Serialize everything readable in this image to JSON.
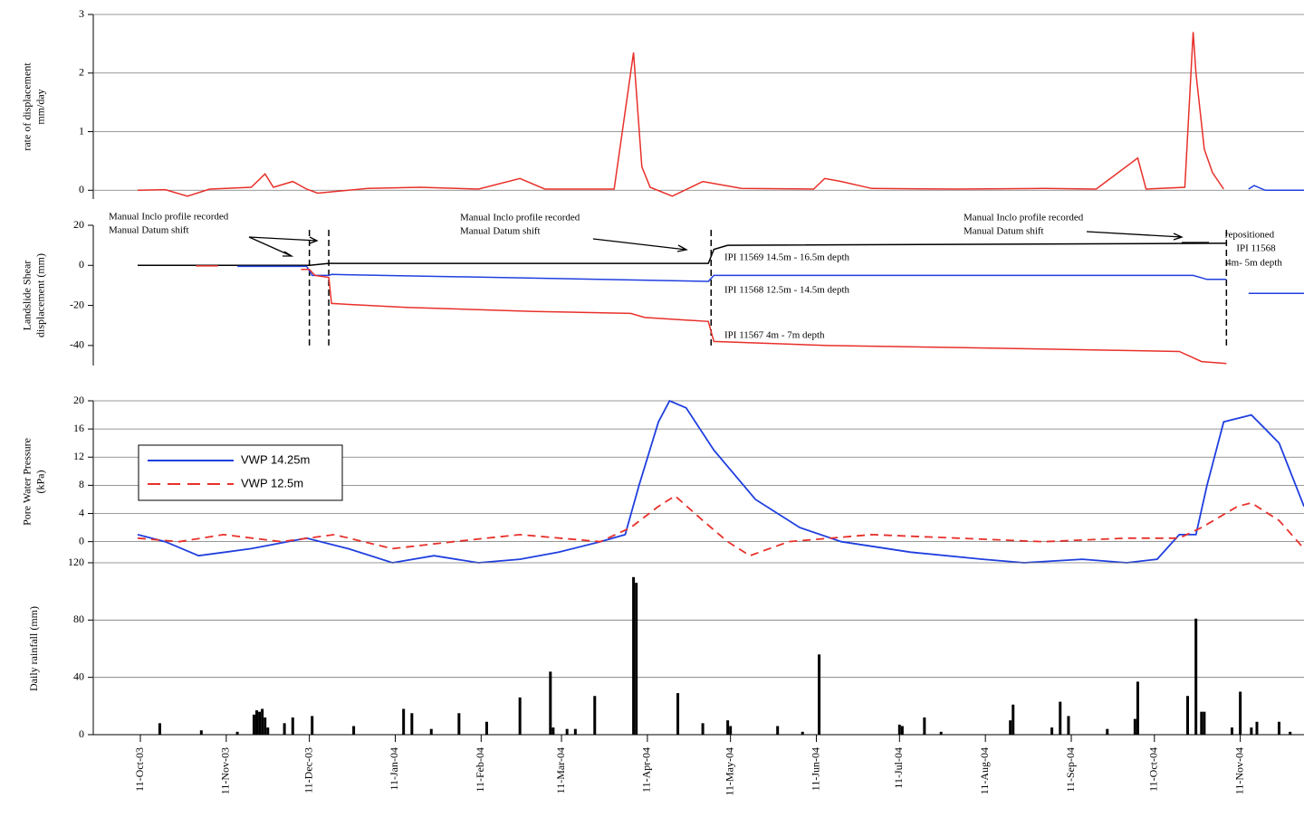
{
  "chart_data": [
    {
      "type": "line",
      "ylabel": [
        "rate of displacement",
        "mm/day"
      ],
      "xlim": [
        "2003-09-24",
        "2004-12-04"
      ],
      "ylim": [
        -0.15,
        3
      ],
      "yticks": [
        0,
        1,
        2,
        3
      ],
      "grid": true,
      "series": [
        {
          "color": "#e8302a",
          "x": [
            "2003-10-10",
            "2003-10-20",
            "2003-10-28",
            "2003-11-05",
            "2003-11-20",
            "2003-11-25",
            "2003-11-28",
            "2003-12-05",
            "2003-12-10",
            "2003-12-14",
            "2004-01-01",
            "2004-01-20",
            "2004-02-10",
            "2004-02-25",
            "2004-03-05",
            "2004-03-30",
            "2004-04-06",
            "2004-04-09",
            "2004-04-12",
            "2004-04-20",
            "2004-05-01",
            "2004-05-15",
            "2004-06-10",
            "2004-06-14",
            "2004-06-20",
            "2004-07-01",
            "2004-08-01",
            "2004-09-01",
            "2004-09-20",
            "2004-10-05",
            "2004-10-08",
            "2004-10-22",
            "2004-10-25",
            "2004-10-26",
            "2004-10-29",
            "2004-11-01",
            "2004-11-05"
          ],
          "values": [
            0,
            0.01,
            -0.1,
            0.02,
            0.05,
            0.28,
            0.05,
            0.15,
            0.02,
            -0.05,
            0.03,
            0.05,
            0.02,
            0.2,
            0.02,
            0.02,
            2.35,
            0.4,
            0.05,
            -0.1,
            0.15,
            0.03,
            0.02,
            0.2,
            0.15,
            0.03,
            0.02,
            0.03,
            0.02,
            0.55,
            0.02,
            0.05,
            2.7,
            2.0,
            0.7,
            0.3,
            0.02
          ]
        },
        {
          "color": "#1f3fdf",
          "x": [
            "2004-11-14",
            "2004-11-16",
            "2004-11-20",
            "2004-12-04"
          ],
          "values": [
            0.02,
            0.08,
            0,
            0
          ]
        }
      ]
    },
    {
      "type": "line",
      "ylabel": [
        "Landslide Shear",
        "displacement (mm)"
      ],
      "xlim": [
        "2003-09-24",
        "2004-12-04"
      ],
      "ylim": [
        -50,
        20
      ],
      "yticks": [
        20,
        0,
        -20,
        -40
      ],
      "grid": false,
      "vlines": [
        "2003-12-11",
        "2003-12-18",
        "2004-05-04",
        "2004-11-06"
      ],
      "annotations": [
        "Manual Inclo profile recorded",
        "Manual Datum shift",
        "Manual Inclo profile recorded",
        "Manual Datum shift",
        "Manual Inclo profile recorded",
        "Manual Datum shift",
        "repositioned",
        "IPI 11568",
        "4m- 5m depth"
      ],
      "series": [
        {
          "name": "IPI 11569 14.5m - 16.5m depth",
          "color": "#000000",
          "x": [
            "2003-10-10",
            "2003-12-11",
            "2003-12-18",
            "2004-05-03",
            "2004-05-05",
            "2004-05-10",
            "2004-11-02",
            "2004-11-06"
          ],
          "values": [
            0,
            0,
            1,
            1,
            8,
            10,
            11,
            11
          ]
        },
        {
          "name": "IPI 11568 12.5m - 14.5m depth",
          "color": "#1f3fdf",
          "x": [
            "2003-11-15",
            "2003-12-10",
            "2003-12-12",
            "2003-12-18",
            "2003-12-19",
            "2004-05-03",
            "2004-05-05",
            "2004-10-25",
            "2004-10-30",
            "2004-11-06",
            "2004-11-10",
            "2004-11-14",
            "2004-12-04"
          ],
          "values": [
            -0.5,
            -0.5,
            -5,
            -5,
            -4.5,
            -8,
            -5,
            -5,
            -7,
            -7,
            null,
            -14,
            -14
          ]
        },
        {
          "name": "IPI 11567 4m - 7m depth",
          "color": "#e8302a",
          "x": [
            "2003-10-31",
            "2003-11-08",
            "2003-11-20",
            "2003-12-08",
            "2003-12-11",
            "2003-12-13",
            "2003-12-18",
            "2003-12-19",
            "2004-01-15",
            "2004-03-01",
            "2004-04-05",
            "2004-04-10",
            "2004-05-03",
            "2004-05-05",
            "2004-06-15",
            "2004-08-01",
            "2004-10-20",
            "2004-10-28",
            "2004-11-06"
          ],
          "values": [
            -0.3,
            -0.3,
            null,
            -2,
            -2,
            -5,
            -6,
            -19,
            -21,
            -23,
            -24,
            -26,
            -28,
            -38,
            -40,
            -41,
            -43,
            -48,
            -49
          ]
        }
      ]
    },
    {
      "type": "line",
      "ylabel": [
        "Pore Water Pressure",
        "(kPa)"
      ],
      "xlim": [
        "2003-09-24",
        "2004-12-04"
      ],
      "ylim": [
        -3,
        20
      ],
      "yticks": [
        0,
        4,
        8,
        12,
        16,
        20
      ],
      "grid": true,
      "series": [
        {
          "name": "VWP 14.25m",
          "color": "#1f3fdf",
          "dash": false,
          "x": [
            "2003-10-10",
            "2003-10-20",
            "2003-11-01",
            "2003-11-20",
            "2003-12-10",
            "2003-12-25",
            "2004-01-10",
            "2004-01-25",
            "2004-02-10",
            "2004-02-25",
            "2004-03-10",
            "2004-03-25",
            "2004-04-03",
            "2004-04-08",
            "2004-04-15",
            "2004-04-19",
            "2004-04-25",
            "2004-05-05",
            "2004-05-20",
            "2004-06-05",
            "2004-06-20",
            "2004-07-15",
            "2004-08-10",
            "2004-08-25",
            "2004-09-15",
            "2004-10-01",
            "2004-10-12",
            "2004-10-20",
            "2004-10-26",
            "2004-10-30",
            "2004-11-05",
            "2004-11-15",
            "2004-11-25",
            "2004-12-04"
          ],
          "values": [
            1,
            0,
            -2,
            -1,
            0.5,
            -1,
            -3,
            -2,
            -3,
            -2.5,
            -1.5,
            0,
            1,
            8,
            17,
            20,
            19,
            13,
            6,
            2,
            0,
            -1.5,
            -2.5,
            -3,
            -2.5,
            -3,
            -2.5,
            1,
            1,
            8,
            17,
            18,
            14,
            5
          ]
        },
        {
          "name": "VWP 12.5m",
          "color": "#e8302a",
          "dash": true,
          "x": [
            "2003-10-10",
            "2003-10-25",
            "2003-11-10",
            "2003-12-01",
            "2003-12-20",
            "2004-01-10",
            "2004-02-01",
            "2004-02-25",
            "2004-03-25",
            "2004-04-05",
            "2004-04-15",
            "2004-04-21",
            "2004-05-01",
            "2004-05-10",
            "2004-05-18",
            "2004-06-01",
            "2004-07-01",
            "2004-08-01",
            "2004-09-01",
            "2004-10-01",
            "2004-10-20",
            "2004-10-28",
            "2004-11-10",
            "2004-11-15",
            "2004-11-25",
            "2004-12-04"
          ],
          "values": [
            0.5,
            0,
            1,
            0,
            1,
            -1,
            0,
            1,
            0,
            2,
            5,
            6.5,
            3,
            0,
            -2,
            0,
            1,
            0.5,
            0,
            0.5,
            0.5,
            2,
            5,
            5.5,
            3,
            -1
          ]
        }
      ]
    },
    {
      "type": "bar",
      "ylabel": [
        "Daily rainfall (mm)"
      ],
      "xlim": [
        "2003-09-24",
        "2004-12-04"
      ],
      "ylim": [
        0,
        120
      ],
      "yticks": [
        0,
        40,
        80,
        120
      ],
      "grid": true,
      "color": "#000000",
      "x": [
        "2003-10-18",
        "2003-11-02",
        "2003-11-15",
        "2003-11-21",
        "2003-11-22",
        "2003-11-23",
        "2003-11-24",
        "2003-11-25",
        "2003-11-26",
        "2003-12-02",
        "2003-12-05",
        "2003-12-12",
        "2003-12-27",
        "2004-01-14",
        "2004-01-17",
        "2004-01-24",
        "2004-02-03",
        "2004-02-13",
        "2004-02-25",
        "2004-03-07",
        "2004-03-08",
        "2004-03-13",
        "2004-03-16",
        "2004-03-23",
        "2004-04-06",
        "2004-04-07",
        "2004-04-22",
        "2004-05-01",
        "2004-05-10",
        "2004-05-11",
        "2004-05-28",
        "2004-06-06",
        "2004-06-12",
        "2004-07-11",
        "2004-07-12",
        "2004-07-20",
        "2004-07-26",
        "2004-08-20",
        "2004-08-21",
        "2004-09-04",
        "2004-09-07",
        "2004-09-10",
        "2004-09-24",
        "2004-10-04",
        "2004-10-05",
        "2004-10-23",
        "2004-10-26",
        "2004-10-28",
        "2004-10-29",
        "2004-11-08",
        "2004-11-11",
        "2004-11-15",
        "2004-11-17",
        "2004-11-25",
        "2004-11-29"
      ],
      "values": [
        8,
        3,
        2,
        14,
        17,
        16,
        18,
        12,
        5,
        8,
        12,
        13,
        6,
        18,
        15,
        4,
        15,
        9,
        26,
        44,
        5,
        4,
        4,
        27,
        110,
        106,
        29,
        8,
        10,
        6,
        6,
        2,
        56,
        7,
        6,
        12,
        2,
        10,
        21,
        5,
        23,
        13,
        4,
        11,
        37,
        27,
        81,
        16,
        16,
        5,
        30,
        5,
        9,
        9,
        2
      ],
      "xticks": [
        {
          "value": "2003-10-11",
          "label": "11-Oct-03"
        },
        {
          "value": "2003-11-11",
          "label": "11-Nov-03"
        },
        {
          "value": "2003-12-11",
          "label": "11-Dec-03"
        },
        {
          "value": "2004-01-11",
          "label": "11-Jan-04"
        },
        {
          "value": "2004-02-11",
          "label": "11-Feb-04"
        },
        {
          "value": "2004-03-11",
          "label": "11-Mar-04"
        },
        {
          "value": "2004-04-11",
          "label": "11-Apr-04"
        },
        {
          "value": "2004-05-11",
          "label": "11-May-04"
        },
        {
          "value": "2004-06-11",
          "label": "11-Jun-04"
        },
        {
          "value": "2004-07-11",
          "label": "11-Jul-04"
        },
        {
          "value": "2004-08-11",
          "label": "11-Aug-04"
        },
        {
          "value": "2004-09-11",
          "label": "11-Sep-04"
        },
        {
          "value": "2004-10-11",
          "label": "11-Oct-04"
        },
        {
          "value": "2004-11-11",
          "label": "11-Nov-04"
        }
      ]
    }
  ]
}
